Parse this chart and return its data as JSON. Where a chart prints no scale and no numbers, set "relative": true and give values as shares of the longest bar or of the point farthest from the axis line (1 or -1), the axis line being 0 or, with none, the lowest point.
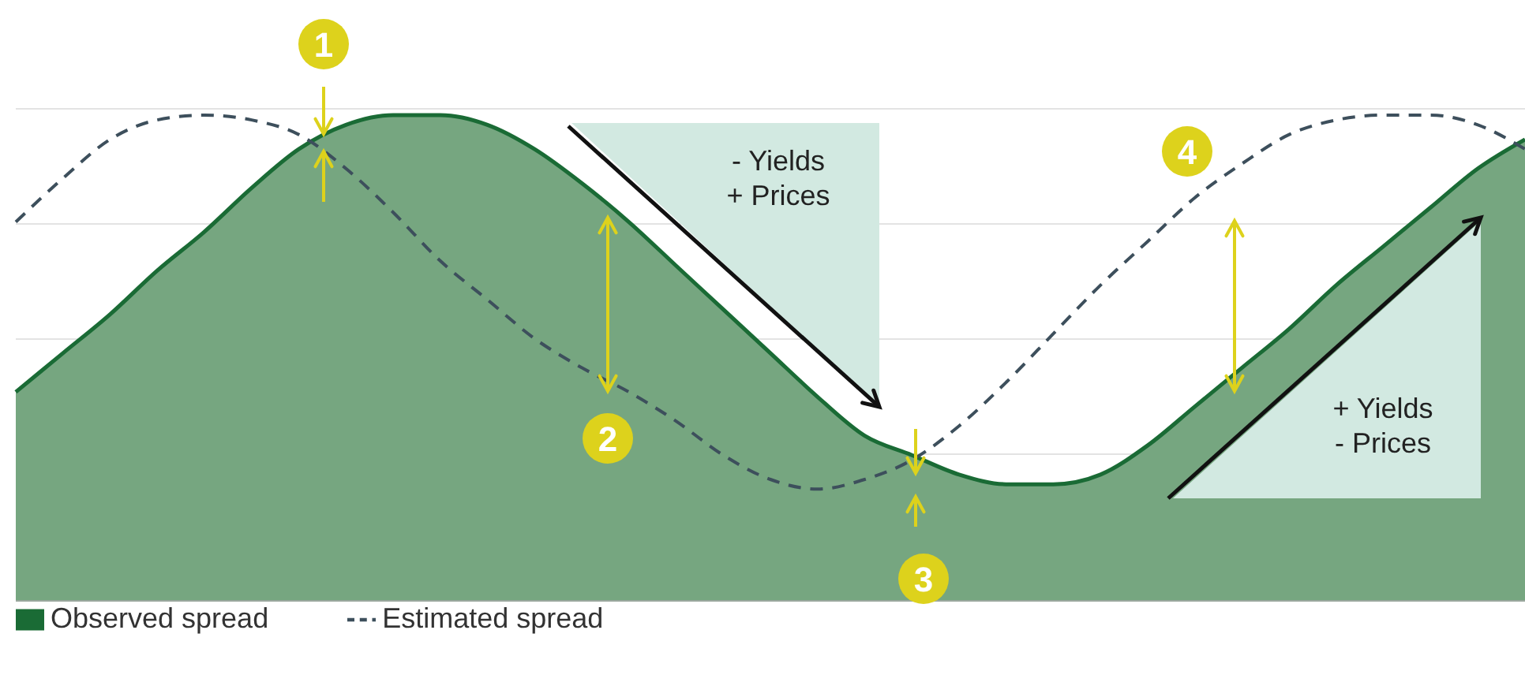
{
  "chart_data": {
    "type": "area",
    "relative": true,
    "grid": "y",
    "legend": "bottom left",
    "categories": [
      null,
      null,
      null,
      null,
      null,
      null,
      null,
      null,
      null,
      null,
      null,
      null,
      null,
      null,
      null,
      null,
      null,
      null,
      null,
      null,
      null,
      null,
      null,
      null,
      null,
      null,
      null,
      null,
      null,
      null,
      null,
      null,
      null
    ],
    "series": [
      {
        "name": "Observed spread",
        "color": "#1a6b35",
        "values": [
          0.43,
          0.51,
          0.59,
          0.68,
          0.76,
          0.85,
          0.93,
          0.98,
          1.0,
          1.0,
          0.98,
          0.93,
          0.86,
          0.78,
          0.69,
          0.6,
          0.51,
          0.42,
          0.34,
          0.3,
          0.26,
          0.24,
          0.24,
          0.26,
          0.32,
          0.4,
          0.48,
          0.56,
          0.65,
          0.73,
          0.81,
          0.89,
          0.95
        ]
      },
      {
        "name": "Estimated spread",
        "type": "line",
        "color": "#3d4f5c",
        "line_style": "dashed",
        "marker": "none",
        "values": [
          0.78,
          0.87,
          0.95,
          0.99,
          1.0,
          0.99,
          0.96,
          0.89,
          0.8,
          0.7,
          0.62,
          0.54,
          0.48,
          0.43,
          0.37,
          0.3,
          0.25,
          0.23,
          0.25,
          0.29,
          0.36,
          0.45,
          0.55,
          0.65,
          0.74,
          0.83,
          0.9,
          0.96,
          0.99,
          1.0,
          1.0,
          0.98,
          0.93
        ]
      }
    ],
    "annotations": [
      "1",
      "2",
      "3",
      "4",
      "- Yields\n+ Prices",
      "+ Yields\n- Prices"
    ]
  }
}
